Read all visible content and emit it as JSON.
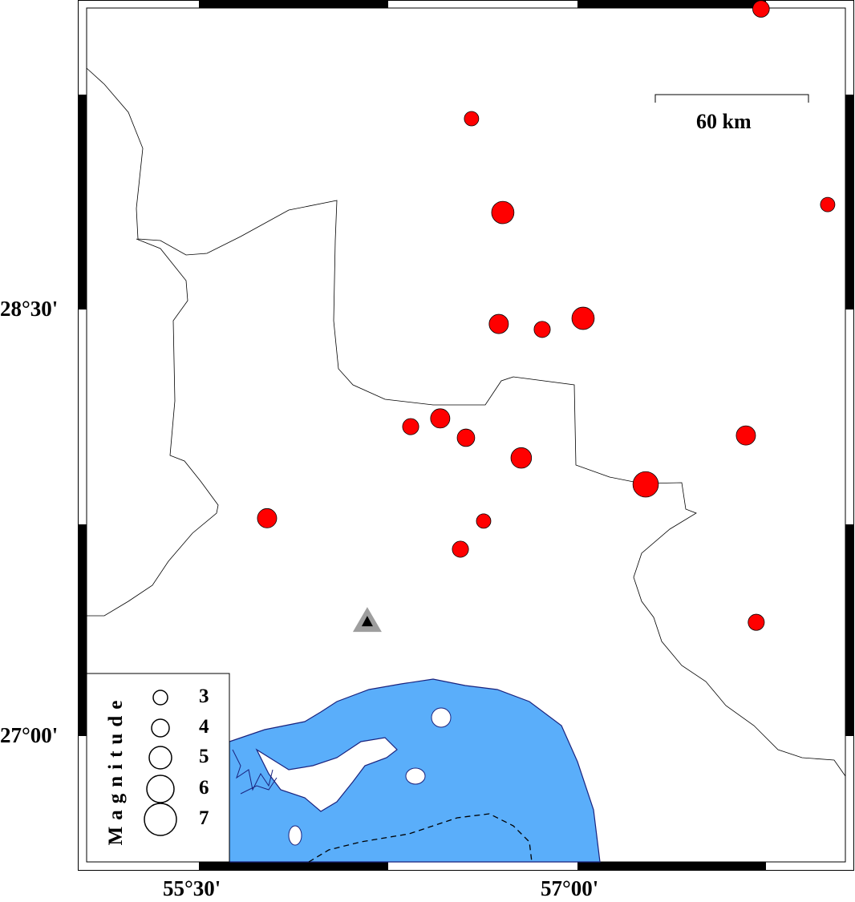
{
  "map": {
    "lon_range": [
      55.05,
      58.06
    ],
    "lat_range": [
      26.56,
      29.56
    ],
    "x_ticks": [
      {
        "lon": 55.5,
        "label": "55°30'"
      },
      {
        "lon": 57.0,
        "label": "57°00'"
      }
    ],
    "y_ticks": [
      {
        "lat": 28.5,
        "label": "28°30'"
      },
      {
        "lat": 27.0,
        "label": "27°00'"
      }
    ],
    "scale_bar": {
      "label": "60 km",
      "km": 60
    },
    "colors": {
      "sea": "#5aaefa",
      "event": "#ff0000",
      "coast": "#1a237e",
      "station": "#9e9e9e"
    },
    "station": {
      "lon": 56.167,
      "lat": 27.4,
      "symbol": "triangle"
    },
    "events": [
      {
        "lon": 57.727,
        "lat": 29.557,
        "mag": 3.5
      },
      {
        "lon": 56.58,
        "lat": 29.171,
        "mag": 3.0
      },
      {
        "lon": 56.704,
        "lat": 28.841,
        "mag": 4.8
      },
      {
        "lon": 57.991,
        "lat": 28.869,
        "mag": 3.0
      },
      {
        "lon": 56.688,
        "lat": 28.449,
        "mag": 4.1
      },
      {
        "lon": 56.86,
        "lat": 28.43,
        "mag": 3.4
      },
      {
        "lon": 57.022,
        "lat": 28.469,
        "mag": 4.8
      },
      {
        "lon": 56.339,
        "lat": 28.088,
        "mag": 3.4
      },
      {
        "lon": 56.456,
        "lat": 28.117,
        "mag": 4.1
      },
      {
        "lon": 56.558,
        "lat": 28.049,
        "mag": 3.7
      },
      {
        "lon": 56.777,
        "lat": 27.978,
        "mag": 4.4
      },
      {
        "lon": 57.667,
        "lat": 28.057,
        "mag": 4.1
      },
      {
        "lon": 57.27,
        "lat": 27.885,
        "mag": 5.5
      },
      {
        "lon": 55.77,
        "lat": 27.766,
        "mag": 4.1
      },
      {
        "lon": 56.628,
        "lat": 27.756,
        "mag": 3.0
      },
      {
        "lon": 56.536,
        "lat": 27.657,
        "mag": 3.4
      },
      {
        "lon": 57.708,
        "lat": 27.4,
        "mag": 3.4
      }
    ]
  },
  "legend": {
    "title": "Magnitude",
    "items": [
      {
        "mag": 3,
        "label": "3"
      },
      {
        "mag": 4,
        "label": "4"
      },
      {
        "mag": 5,
        "label": "5"
      },
      {
        "mag": 6,
        "label": "6"
      },
      {
        "mag": 7,
        "label": "7"
      }
    ]
  }
}
